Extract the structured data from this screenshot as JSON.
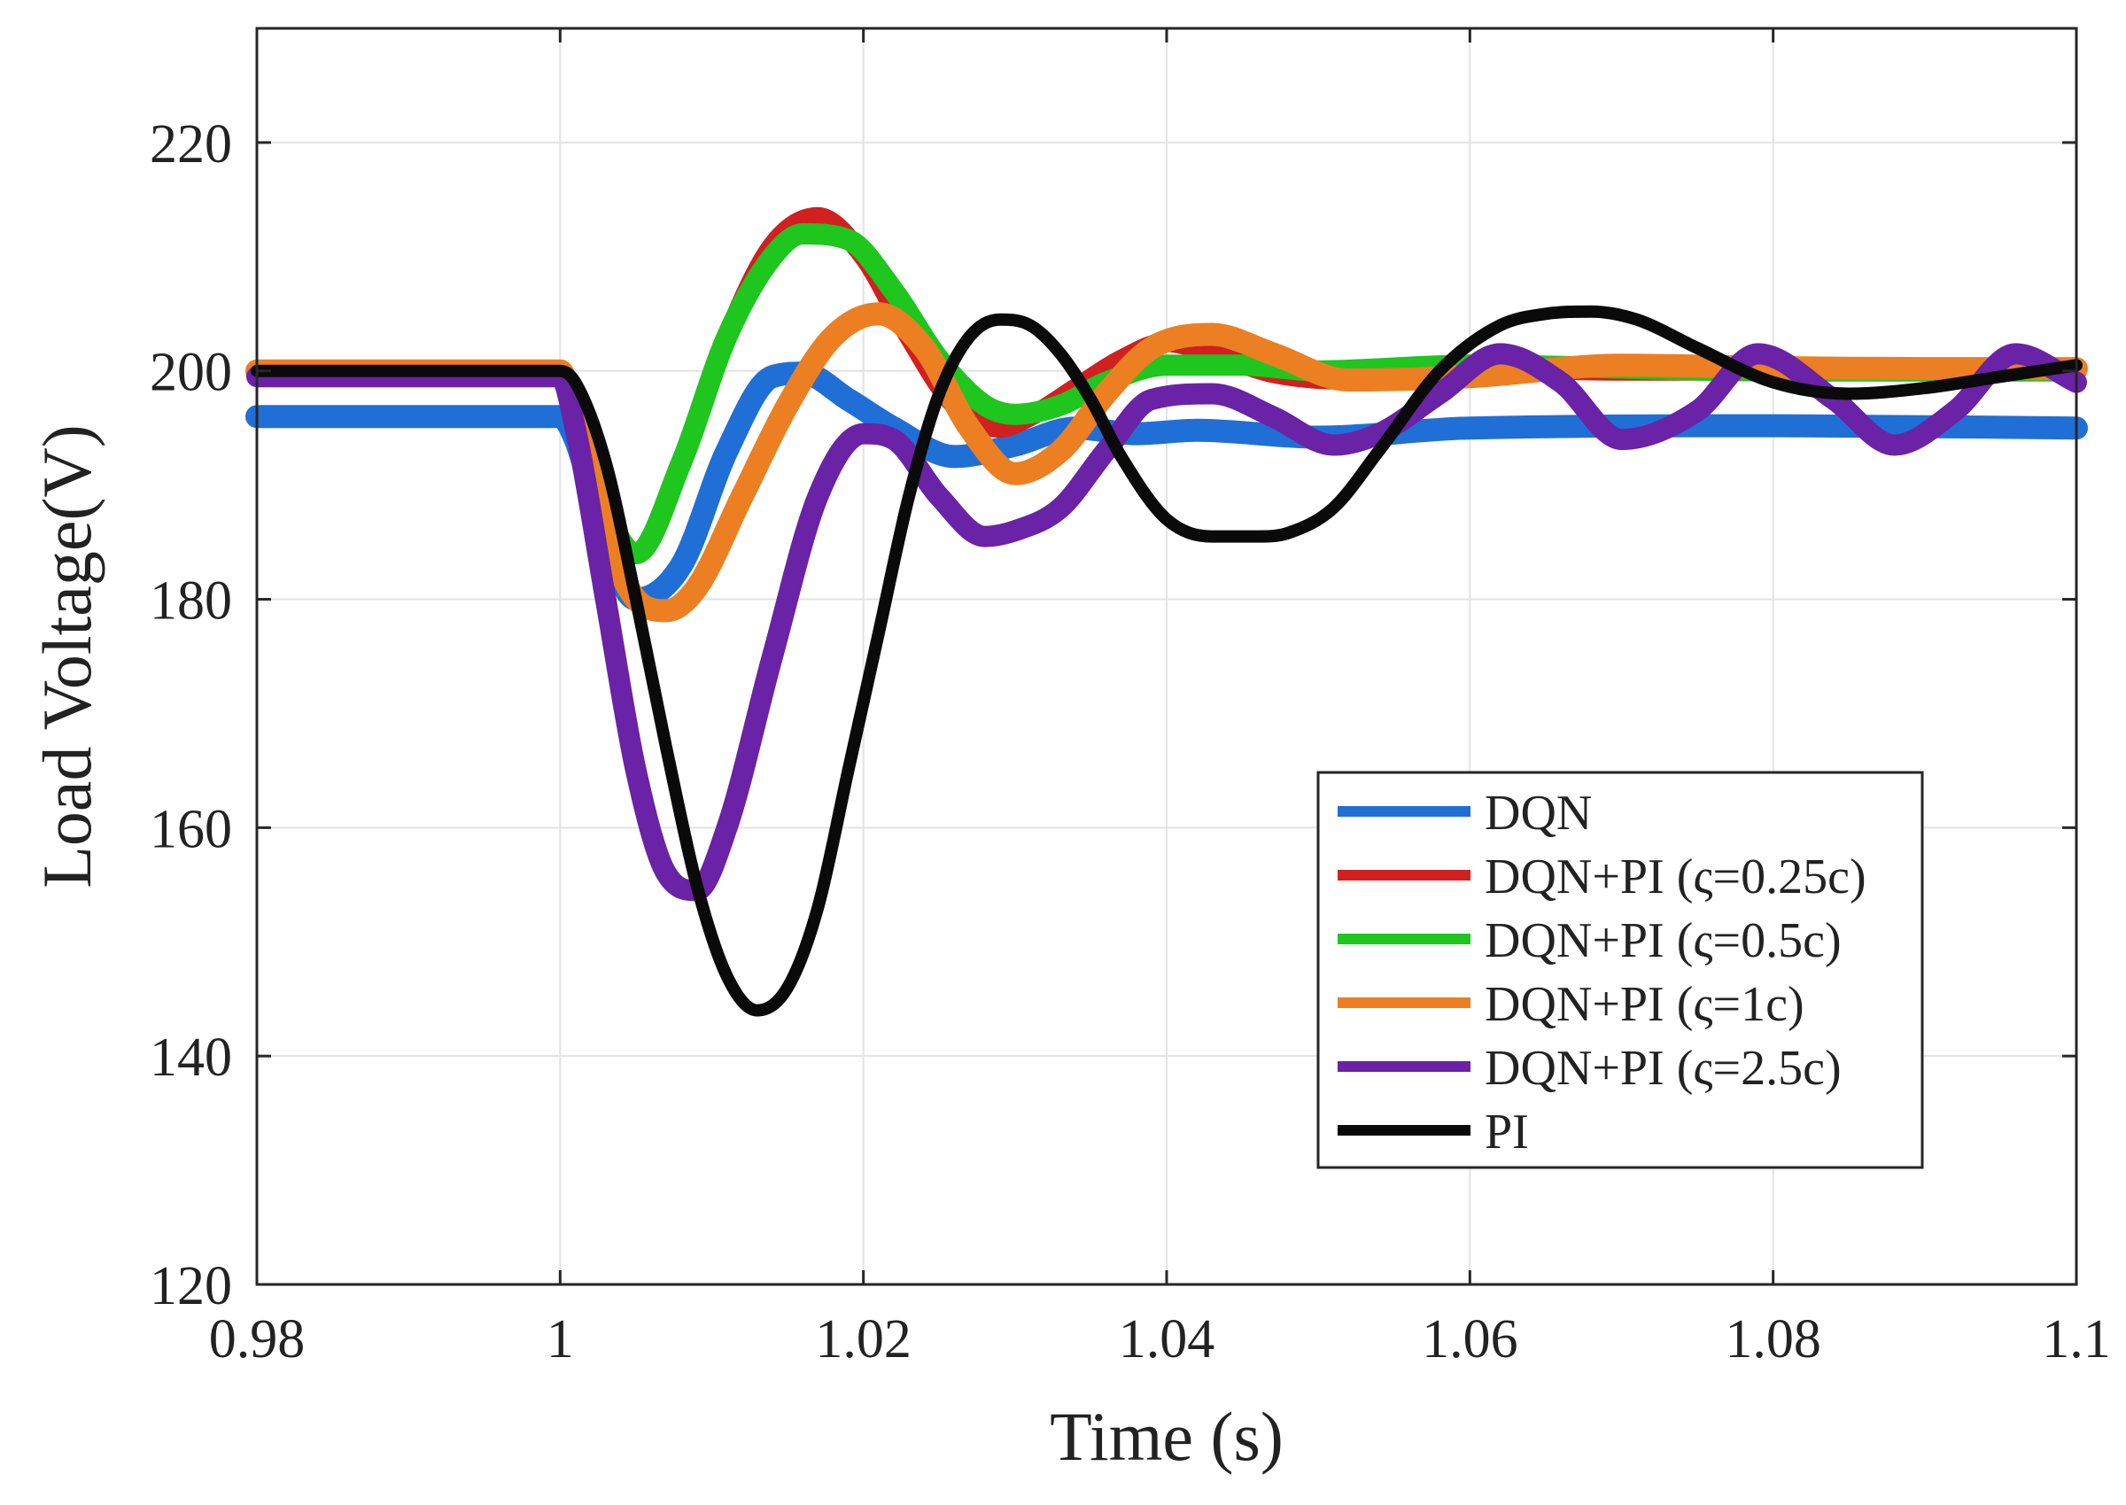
{
  "chart_data": {
    "type": "line",
    "title": "",
    "xlabel": "Time (s)",
    "ylabel": "Load Voltage(V)",
    "xlim": [
      0.98,
      1.1
    ],
    "ylim": [
      120,
      230
    ],
    "xticks": [
      0.98,
      1,
      1.02,
      1.04,
      1.06,
      1.08,
      1.1
    ],
    "xtick_labels": [
      "0.98",
      "1",
      "1.02",
      "1.04",
      "1.06",
      "1.08",
      "1.1"
    ],
    "yticks": [
      120,
      140,
      160,
      180,
      200,
      220
    ],
    "ytick_labels": [
      "120",
      "140",
      "160",
      "180",
      "200",
      "220"
    ],
    "grid": true,
    "legend_position": "lower-right",
    "series": [
      {
        "name": "DQN",
        "color": "#1f6fd6",
        "x": [
          0.98,
          1.0,
          1.001,
          1.003,
          1.005,
          1.008,
          1.011,
          1.014,
          1.016,
          1.019,
          1.022,
          1.026,
          1.03,
          1.034,
          1.038,
          1.042,
          1.05,
          1.06,
          1.08,
          1.1
        ],
        "y": [
          196,
          196,
          194,
          185,
          180,
          183,
          193,
          199.5,
          199.8,
          197.5,
          195,
          192.5,
          193.5,
          195,
          194.5,
          194.8,
          194.2,
          195,
          195.2,
          195
        ]
      },
      {
        "name": "DQN+PI (ς=0.25c)",
        "color": "#d12020",
        "x": [
          0.98,
          1.0,
          1.001,
          1.003,
          1.005,
          1.008,
          1.011,
          1.014,
          1.017,
          1.02,
          1.023,
          1.026,
          1.029,
          1.031,
          1.034,
          1.037,
          1.04,
          1.043,
          1.047,
          1.052,
          1.06,
          1.07,
          1.08,
          1.09,
          1.1
        ],
        "y": [
          200,
          200,
          197,
          188,
          184,
          192,
          203,
          211,
          213.5,
          210,
          203,
          197,
          195,
          196,
          198.5,
          201,
          202.5,
          201.5,
          199.8,
          199.2,
          200.2,
          200,
          200,
          200,
          200
        ]
      },
      {
        "name": "DQN+PI (ς=0.5c)",
        "color": "#1ec61e",
        "x": [
          0.98,
          1.0,
          1.001,
          1.003,
          1.005,
          1.008,
          1.011,
          1.014,
          1.016,
          1.019,
          1.022,
          1.025,
          1.028,
          1.03,
          1.033,
          1.036,
          1.04,
          1.045,
          1.05,
          1.06,
          1.08,
          1.1
        ],
        "y": [
          200,
          200,
          197,
          188,
          184,
          192,
          203,
          210,
          212,
          211.5,
          207,
          201,
          197,
          196.2,
          197,
          199,
          200.5,
          200.5,
          200,
          200.5,
          200,
          200
        ]
      },
      {
        "name": "DQN+PI (ς=1c)",
        "color": "#ec7f22",
        "x": [
          0.98,
          1.0,
          1.001,
          1.003,
          1.005,
          1.007,
          1.009,
          1.012,
          1.015,
          1.018,
          1.021,
          1.024,
          1.027,
          1.03,
          1.033,
          1.036,
          1.039,
          1.043,
          1.047,
          1.052,
          1.06,
          1.07,
          1.08,
          1.09,
          1.1
        ],
        "y": [
          200,
          200,
          196,
          186,
          180,
          179,
          181,
          189,
          197,
          203,
          205,
          202,
          195,
          191,
          193,
          198,
          202,
          203.2,
          201.5,
          199.2,
          199.5,
          200.5,
          200.3,
          200.2,
          200.2
        ]
      },
      {
        "name": "DQN+PI (ς=2.5c)",
        "color": "#6a22a6",
        "x": [
          0.98,
          1.0,
          1.001,
          1.003,
          1.005,
          1.007,
          1.009,
          1.011,
          1.014,
          1.017,
          1.02,
          1.022,
          1.025,
          1.028,
          1.03,
          1.033,
          1.036,
          1.039,
          1.043,
          1.047,
          1.051,
          1.054,
          1.058,
          1.062,
          1.066,
          1.07,
          1.075,
          1.079,
          1.084,
          1.088,
          1.092,
          1.096,
          1.1
        ],
        "y": [
          199.5,
          199.5,
          195,
          180,
          165,
          156,
          154.5,
          160,
          175,
          189,
          194.5,
          194,
          189,
          185.5,
          186,
          188,
          193,
          197.5,
          198,
          196,
          193.5,
          194.5,
          198,
          201.5,
          199,
          194,
          196.5,
          201.5,
          197.5,
          193.5,
          196.5,
          201.5,
          199
        ]
      },
      {
        "name": "PI",
        "color": "#0a0a0a",
        "x": [
          0.98,
          1.0,
          1.001,
          1.003,
          1.005,
          1.007,
          1.009,
          1.011,
          1.013,
          1.015,
          1.017,
          1.019,
          1.021,
          1.023,
          1.025,
          1.027,
          1.029,
          1.031,
          1.033,
          1.035,
          1.037,
          1.04,
          1.043,
          1.046,
          1.048,
          1.051,
          1.054,
          1.058,
          1.062,
          1.065,
          1.068,
          1.071,
          1.075,
          1.08,
          1.085,
          1.09,
          1.095,
          1.1
        ],
        "y": [
          200,
          200,
          199,
          192,
          180,
          167,
          155,
          147,
          144,
          146,
          153,
          165,
          177,
          189,
          198,
          203,
          204.5,
          204,
          201.5,
          197.5,
          192.5,
          187,
          185.5,
          185.5,
          185.8,
          188,
          193,
          200,
          204,
          205,
          205.2,
          204.5,
          202,
          199,
          198,
          198.5,
          199.5,
          200.5
        ]
      }
    ]
  }
}
